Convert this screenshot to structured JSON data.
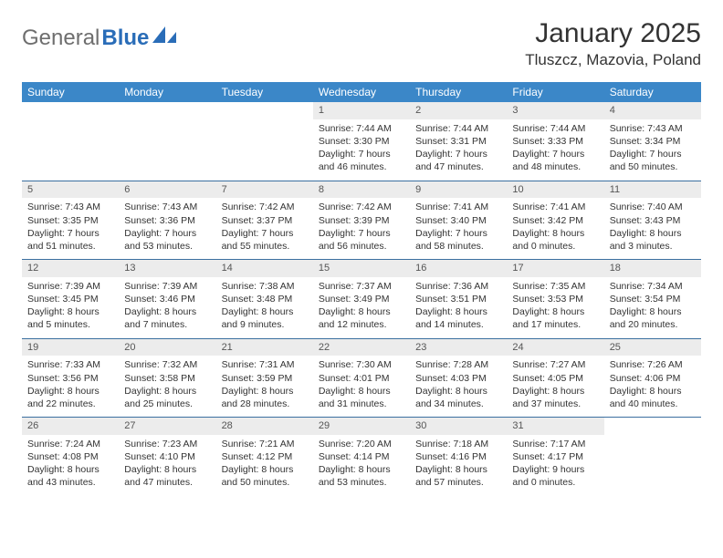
{
  "brand": {
    "general": "General",
    "blue": "Blue",
    "accent_color": "#2a6db8",
    "gray_color": "#6e6e6e"
  },
  "header": {
    "month_title": "January 2025",
    "location": "Tluszcz, Mazovia, Poland"
  },
  "colors": {
    "header_bg": "#3b87c8",
    "header_fg": "#ffffff",
    "row_border": "#3b6fa0",
    "daynum_bg": "#ececec",
    "page_bg": "#ffffff"
  },
  "weekdays": [
    "Sunday",
    "Monday",
    "Tuesday",
    "Wednesday",
    "Thursday",
    "Friday",
    "Saturday"
  ],
  "weeks": [
    [
      {
        "empty": true
      },
      {
        "empty": true
      },
      {
        "empty": true
      },
      {
        "day": "1",
        "sunrise": "Sunrise: 7:44 AM",
        "sunset": "Sunset: 3:30 PM",
        "daylight1": "Daylight: 7 hours",
        "daylight2": "and 46 minutes."
      },
      {
        "day": "2",
        "sunrise": "Sunrise: 7:44 AM",
        "sunset": "Sunset: 3:31 PM",
        "daylight1": "Daylight: 7 hours",
        "daylight2": "and 47 minutes."
      },
      {
        "day": "3",
        "sunrise": "Sunrise: 7:44 AM",
        "sunset": "Sunset: 3:33 PM",
        "daylight1": "Daylight: 7 hours",
        "daylight2": "and 48 minutes."
      },
      {
        "day": "4",
        "sunrise": "Sunrise: 7:43 AM",
        "sunset": "Sunset: 3:34 PM",
        "daylight1": "Daylight: 7 hours",
        "daylight2": "and 50 minutes."
      }
    ],
    [
      {
        "day": "5",
        "sunrise": "Sunrise: 7:43 AM",
        "sunset": "Sunset: 3:35 PM",
        "daylight1": "Daylight: 7 hours",
        "daylight2": "and 51 minutes."
      },
      {
        "day": "6",
        "sunrise": "Sunrise: 7:43 AM",
        "sunset": "Sunset: 3:36 PM",
        "daylight1": "Daylight: 7 hours",
        "daylight2": "and 53 minutes."
      },
      {
        "day": "7",
        "sunrise": "Sunrise: 7:42 AM",
        "sunset": "Sunset: 3:37 PM",
        "daylight1": "Daylight: 7 hours",
        "daylight2": "and 55 minutes."
      },
      {
        "day": "8",
        "sunrise": "Sunrise: 7:42 AM",
        "sunset": "Sunset: 3:39 PM",
        "daylight1": "Daylight: 7 hours",
        "daylight2": "and 56 minutes."
      },
      {
        "day": "9",
        "sunrise": "Sunrise: 7:41 AM",
        "sunset": "Sunset: 3:40 PM",
        "daylight1": "Daylight: 7 hours",
        "daylight2": "and 58 minutes."
      },
      {
        "day": "10",
        "sunrise": "Sunrise: 7:41 AM",
        "sunset": "Sunset: 3:42 PM",
        "daylight1": "Daylight: 8 hours",
        "daylight2": "and 0 minutes."
      },
      {
        "day": "11",
        "sunrise": "Sunrise: 7:40 AM",
        "sunset": "Sunset: 3:43 PM",
        "daylight1": "Daylight: 8 hours",
        "daylight2": "and 3 minutes."
      }
    ],
    [
      {
        "day": "12",
        "sunrise": "Sunrise: 7:39 AM",
        "sunset": "Sunset: 3:45 PM",
        "daylight1": "Daylight: 8 hours",
        "daylight2": "and 5 minutes."
      },
      {
        "day": "13",
        "sunrise": "Sunrise: 7:39 AM",
        "sunset": "Sunset: 3:46 PM",
        "daylight1": "Daylight: 8 hours",
        "daylight2": "and 7 minutes."
      },
      {
        "day": "14",
        "sunrise": "Sunrise: 7:38 AM",
        "sunset": "Sunset: 3:48 PM",
        "daylight1": "Daylight: 8 hours",
        "daylight2": "and 9 minutes."
      },
      {
        "day": "15",
        "sunrise": "Sunrise: 7:37 AM",
        "sunset": "Sunset: 3:49 PM",
        "daylight1": "Daylight: 8 hours",
        "daylight2": "and 12 minutes."
      },
      {
        "day": "16",
        "sunrise": "Sunrise: 7:36 AM",
        "sunset": "Sunset: 3:51 PM",
        "daylight1": "Daylight: 8 hours",
        "daylight2": "and 14 minutes."
      },
      {
        "day": "17",
        "sunrise": "Sunrise: 7:35 AM",
        "sunset": "Sunset: 3:53 PM",
        "daylight1": "Daylight: 8 hours",
        "daylight2": "and 17 minutes."
      },
      {
        "day": "18",
        "sunrise": "Sunrise: 7:34 AM",
        "sunset": "Sunset: 3:54 PM",
        "daylight1": "Daylight: 8 hours",
        "daylight2": "and 20 minutes."
      }
    ],
    [
      {
        "day": "19",
        "sunrise": "Sunrise: 7:33 AM",
        "sunset": "Sunset: 3:56 PM",
        "daylight1": "Daylight: 8 hours",
        "daylight2": "and 22 minutes."
      },
      {
        "day": "20",
        "sunrise": "Sunrise: 7:32 AM",
        "sunset": "Sunset: 3:58 PM",
        "daylight1": "Daylight: 8 hours",
        "daylight2": "and 25 minutes."
      },
      {
        "day": "21",
        "sunrise": "Sunrise: 7:31 AM",
        "sunset": "Sunset: 3:59 PM",
        "daylight1": "Daylight: 8 hours",
        "daylight2": "and 28 minutes."
      },
      {
        "day": "22",
        "sunrise": "Sunrise: 7:30 AM",
        "sunset": "Sunset: 4:01 PM",
        "daylight1": "Daylight: 8 hours",
        "daylight2": "and 31 minutes."
      },
      {
        "day": "23",
        "sunrise": "Sunrise: 7:28 AM",
        "sunset": "Sunset: 4:03 PM",
        "daylight1": "Daylight: 8 hours",
        "daylight2": "and 34 minutes."
      },
      {
        "day": "24",
        "sunrise": "Sunrise: 7:27 AM",
        "sunset": "Sunset: 4:05 PM",
        "daylight1": "Daylight: 8 hours",
        "daylight2": "and 37 minutes."
      },
      {
        "day": "25",
        "sunrise": "Sunrise: 7:26 AM",
        "sunset": "Sunset: 4:06 PM",
        "daylight1": "Daylight: 8 hours",
        "daylight2": "and 40 minutes."
      }
    ],
    [
      {
        "day": "26",
        "sunrise": "Sunrise: 7:24 AM",
        "sunset": "Sunset: 4:08 PM",
        "daylight1": "Daylight: 8 hours",
        "daylight2": "and 43 minutes."
      },
      {
        "day": "27",
        "sunrise": "Sunrise: 7:23 AM",
        "sunset": "Sunset: 4:10 PM",
        "daylight1": "Daylight: 8 hours",
        "daylight2": "and 47 minutes."
      },
      {
        "day": "28",
        "sunrise": "Sunrise: 7:21 AM",
        "sunset": "Sunset: 4:12 PM",
        "daylight1": "Daylight: 8 hours",
        "daylight2": "and 50 minutes."
      },
      {
        "day": "29",
        "sunrise": "Sunrise: 7:20 AM",
        "sunset": "Sunset: 4:14 PM",
        "daylight1": "Daylight: 8 hours",
        "daylight2": "and 53 minutes."
      },
      {
        "day": "30",
        "sunrise": "Sunrise: 7:18 AM",
        "sunset": "Sunset: 4:16 PM",
        "daylight1": "Daylight: 8 hours",
        "daylight2": "and 57 minutes."
      },
      {
        "day": "31",
        "sunrise": "Sunrise: 7:17 AM",
        "sunset": "Sunset: 4:17 PM",
        "daylight1": "Daylight: 9 hours",
        "daylight2": "and 0 minutes."
      },
      {
        "empty": true
      }
    ]
  ]
}
